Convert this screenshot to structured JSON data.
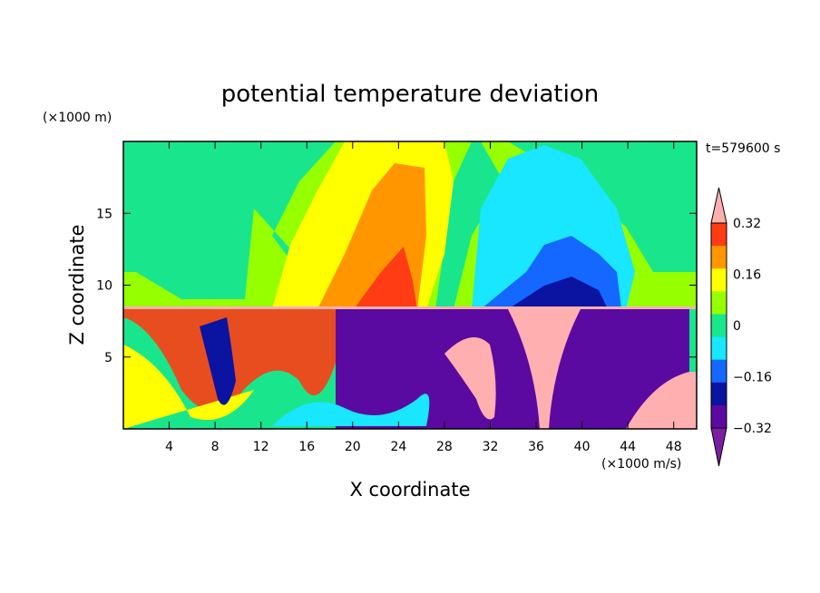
{
  "chart_data": {
    "type": "heatmap",
    "title": "potential temperature deviation",
    "xlabel": "X coordinate",
    "ylabel": "Z coordinate",
    "x_unit": "(×1000 m/s)",
    "y_unit": "(×1000 m)",
    "time_label": "t=579600 s",
    "xlim": [
      0,
      50
    ],
    "ylim": [
      0,
      20
    ],
    "x_ticks": [
      4,
      8,
      12,
      16,
      20,
      24,
      28,
      32,
      36,
      40,
      44,
      48
    ],
    "y_ticks": [
      5,
      10,
      15
    ],
    "colorbar": {
      "levels": [
        -0.4,
        -0.32,
        -0.24,
        -0.16,
        -0.08,
        0,
        0.08,
        0.16,
        0.24,
        0.32,
        0.4
      ],
      "tick_labels": [
        "0.32",
        "0.16",
        "0",
        "−0.16",
        "−0.32"
      ],
      "tick_values": [
        0.32,
        0.16,
        0,
        -0.16,
        -0.32
      ],
      "colors": [
        "#7a1fa2",
        "#5a0aa0",
        "#0a14a0",
        "#1468ff",
        "#19e6ff",
        "#19e68c",
        "#96ff00",
        "#ffff00",
        "#ff9600",
        "#ff3c14",
        "#ffafaf"
      ]
    }
  }
}
